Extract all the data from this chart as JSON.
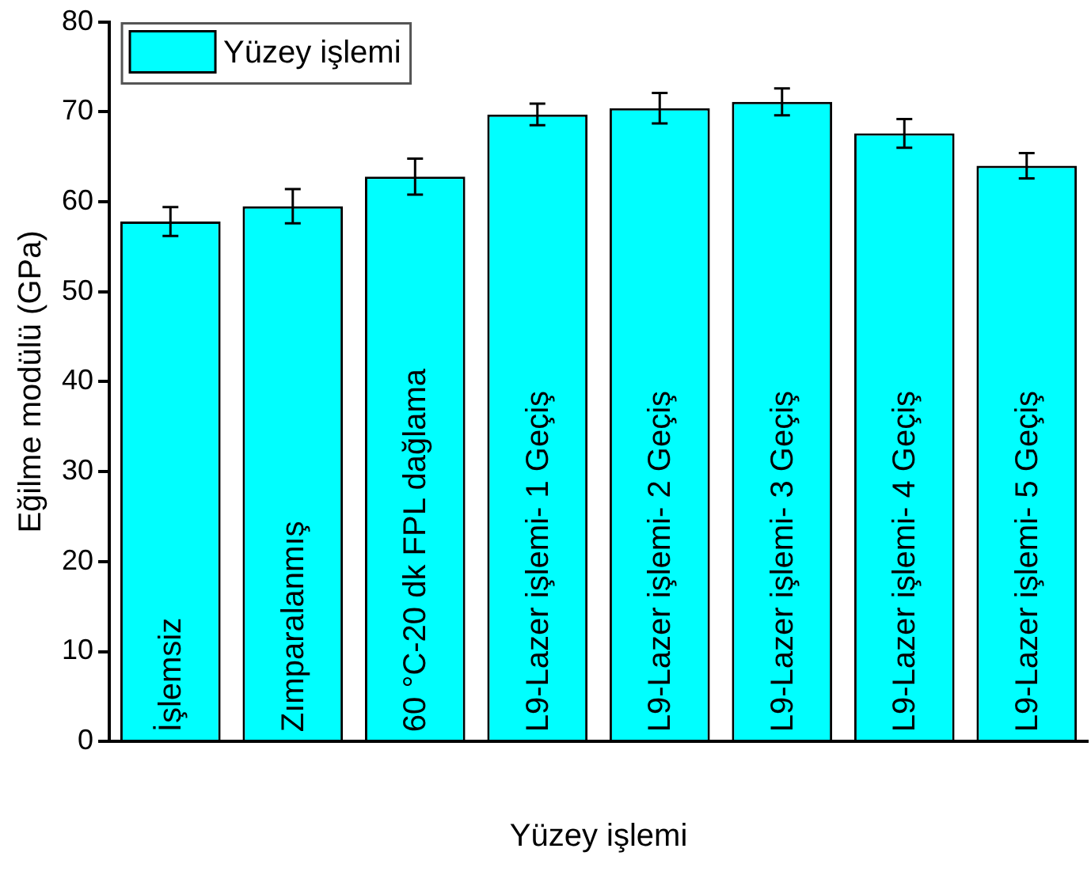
{
  "chart_data": {
    "type": "bar",
    "xlabel": "Yüzey işlemi",
    "ylabel": "Eğilme modülü (GPa)",
    "categories": [
      "İşlemsiz",
      "Zımparalanmış",
      "60 °C-20 dk FPL dağlama",
      "L9-Lazer işlemi- 1 Geçiş",
      "L9-Lazer işlemi- 2 Geçiş",
      "L9-Lazer işlemi- 3 Geçiş",
      "L9-Lazer işlemi- 4 Geçiş",
      "L9-Lazer işlemi- 5 Geçiş"
    ],
    "series": [
      {
        "name": "Yüzey işlemi",
        "color": "#00ffff",
        "values": [
          57.8,
          59.5,
          62.8,
          69.7,
          70.4,
          71.1,
          67.6,
          64.0
        ],
        "errors": [
          1.6,
          1.9,
          2.0,
          1.2,
          1.7,
          1.5,
          1.6,
          1.4
        ]
      }
    ],
    "ylim": [
      0,
      80
    ],
    "yticks": [
      0,
      10,
      20,
      30,
      40,
      50,
      60,
      70,
      80
    ],
    "grid": false,
    "legend": "top left"
  }
}
